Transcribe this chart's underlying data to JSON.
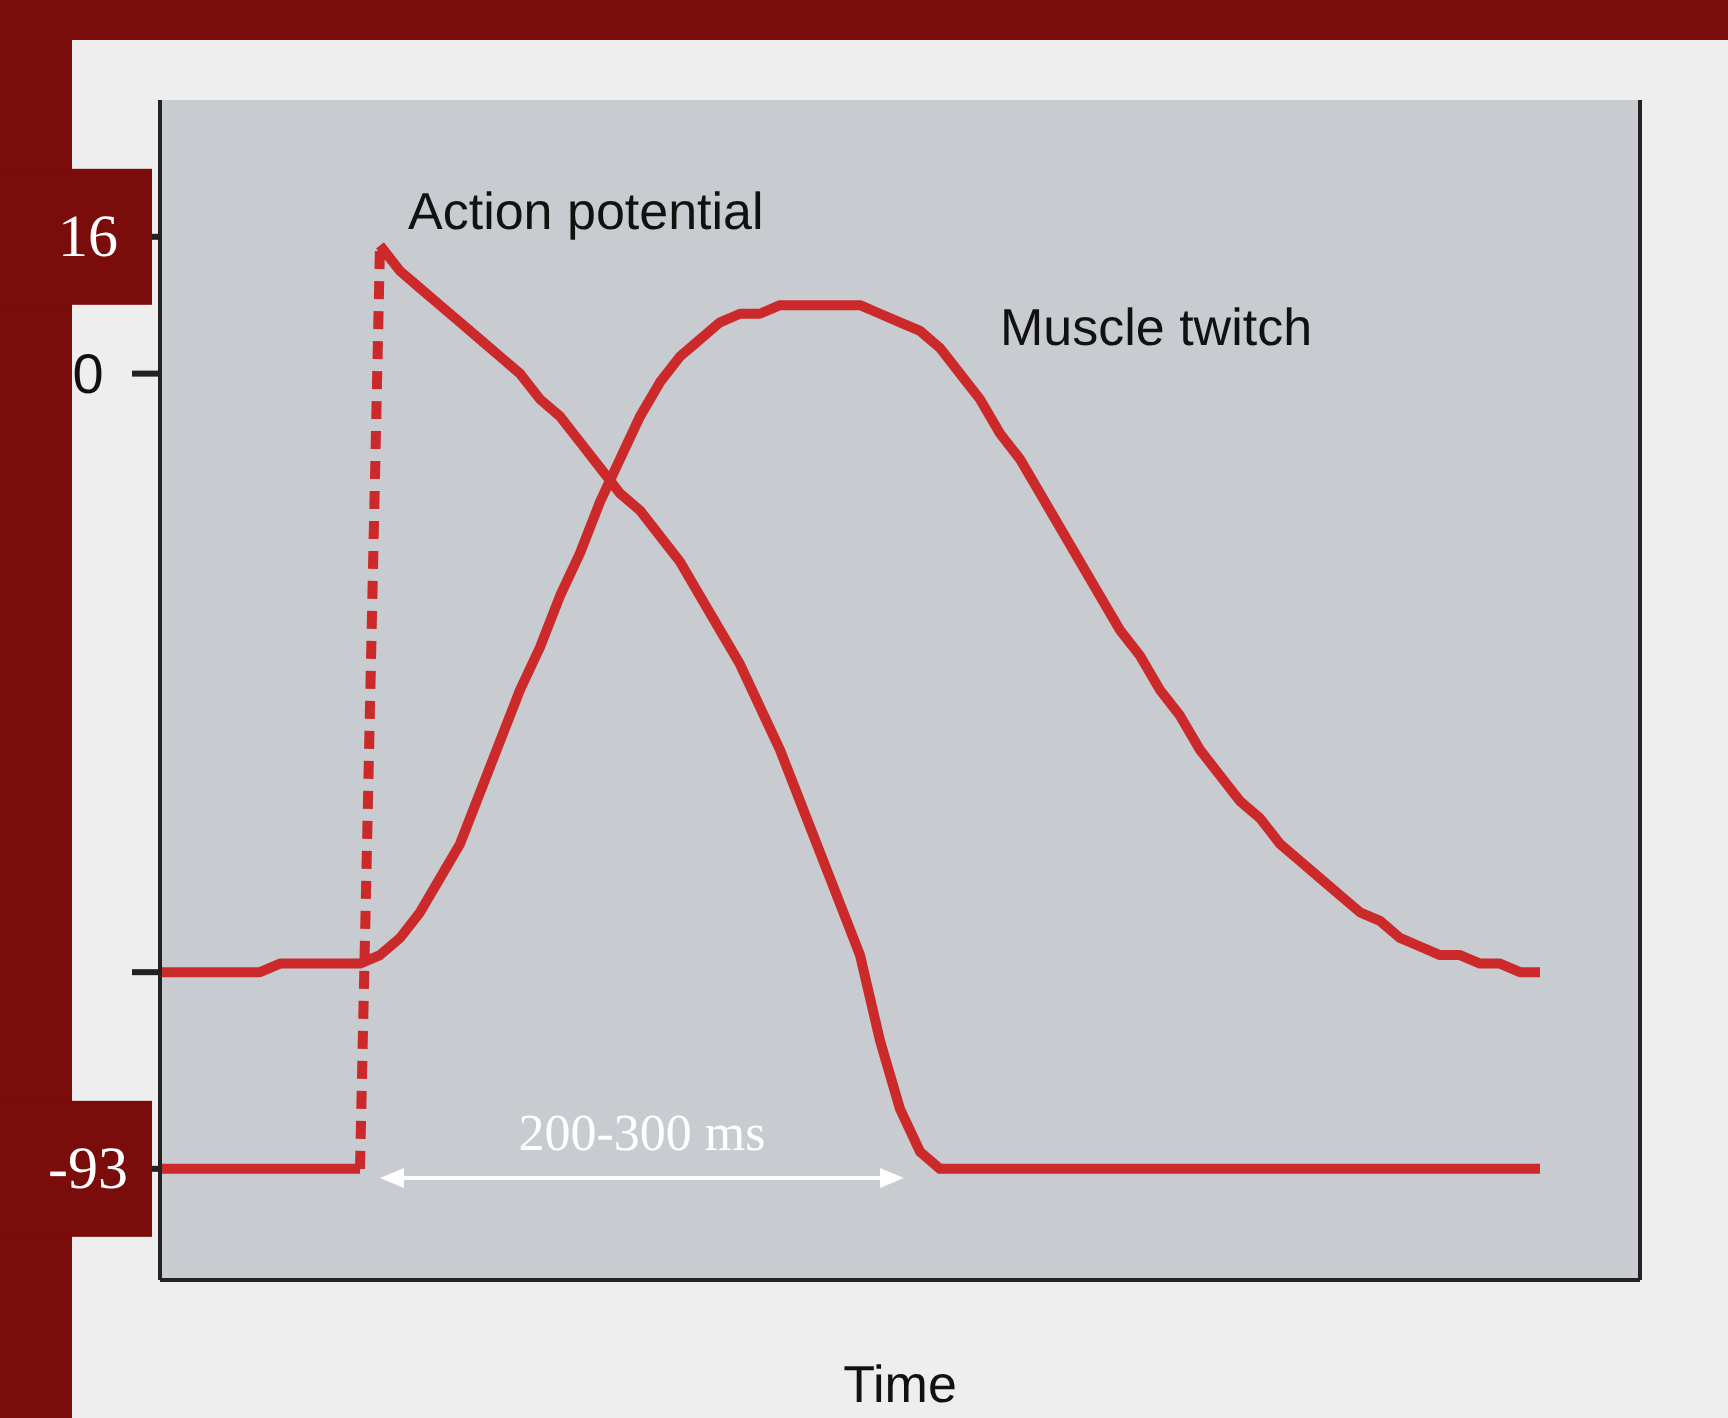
{
  "chart_data": {
    "type": "line",
    "xlabel": "Time",
    "ylim": [
      -106,
      32
    ],
    "yticks": [
      16,
      0,
      {
        "value": -70,
        "label": null
      },
      -93
    ],
    "tick_labels": "y",
    "categories": [
      null,
      null,
      null,
      null,
      null,
      null,
      null,
      null,
      null,
      null,
      null,
      null,
      null,
      null,
      null,
      null,
      null,
      null,
      null,
      null,
      null,
      null,
      null,
      null,
      null,
      null,
      null,
      null,
      null,
      null,
      null,
      null,
      null,
      null,
      null,
      null,
      null,
      null,
      null,
      null,
      null,
      null,
      null,
      null,
      null,
      null,
      null,
      null,
      null,
      null,
      null,
      null,
      null,
      null,
      null,
      null,
      null,
      null,
      null,
      null,
      null,
      null,
      null,
      null,
      null,
      null,
      null,
      null,
      null,
      null,
      null,
      null,
      null,
      null,
      null
    ],
    "series": [
      {
        "name": "Action potential",
        "color": "#cc2a2a",
        "line_style": "dashed",
        "values": [
          -93,
          -93,
          -93,
          -93,
          -93,
          -93,
          -93,
          -93,
          -93,
          -93,
          -93,
          15,
          12,
          10,
          8,
          6,
          4,
          2,
          0,
          -3,
          -5,
          -8,
          -11,
          -14,
          -16,
          -19,
          -22,
          -26,
          -30,
          -34,
          -39,
          -44,
          -50,
          -56,
          -62,
          -68,
          -78,
          -86,
          -91,
          -93,
          -93,
          -93,
          -93,
          -93,
          -93,
          -93,
          -93,
          -93,
          -93,
          -93,
          -93,
          -93,
          -93,
          -93,
          -93,
          -93,
          -93,
          -93,
          -93,
          -93,
          -93,
          -93,
          -93,
          -93,
          -93,
          -93,
          -93,
          -93,
          -93,
          -93,
          null,
          null,
          null,
          null,
          null
        ]
      },
      {
        "name": "Muscle twitch",
        "color": "#cc2a2a",
        "values": [
          -70,
          -70,
          -70,
          -70,
          -70,
          -70,
          -69,
          -69,
          -69,
          -69,
          -69,
          -68,
          -66,
          -63,
          -59,
          -55,
          -49,
          -43,
          -37,
          -32,
          -26,
          -21,
          -15,
          -10,
          -5,
          -1,
          2,
          4,
          6,
          7,
          7,
          8,
          8,
          8,
          8,
          8,
          7,
          6,
          5,
          3,
          0,
          -3,
          -7,
          -10,
          -14,
          -18,
          -22,
          -26,
          -30,
          -33,
          -37,
          -40,
          -44,
          -47,
          -50,
          -52,
          -55,
          -57,
          -59,
          -61,
          -63,
          -64,
          -66,
          -67,
          -68,
          -68,
          -69,
          -69,
          -70,
          -70,
          null,
          null,
          null,
          null,
          null
        ]
      }
    ],
    "annotations": [
      "200-300 ms"
    ]
  }
}
